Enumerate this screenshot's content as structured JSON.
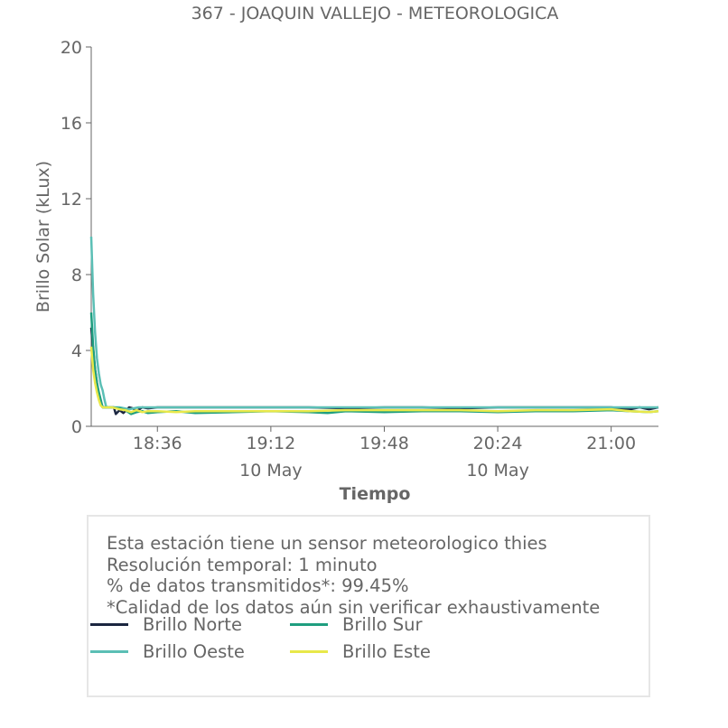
{
  "chart_data": {
    "type": "line",
    "title": "367 - JOAQUIN VALLEJO - METEOROLOGICA",
    "xlabel": "Tiempo",
    "ylabel": "Brillo Solar (kLux)",
    "ylim": [
      0,
      20
    ],
    "yticks": [
      0,
      4,
      8,
      12,
      16,
      20
    ],
    "x_range_minutes": [
      18.25,
      21.25
    ],
    "xticks": [
      {
        "t": 18.6,
        "label": "18:36",
        "date": ""
      },
      {
        "t": 19.2,
        "label": "19:12",
        "date": "10 May"
      },
      {
        "t": 19.8,
        "label": "19:48",
        "date": ""
      },
      {
        "t": 20.4,
        "label": "20:24",
        "date": "10 May"
      },
      {
        "t": 21.0,
        "label": "21:00",
        "date": ""
      }
    ],
    "grid": false,
    "legend_position": "bottom",
    "series": [
      {
        "name": "Brillo Norte",
        "color": "#1b2640",
        "points": [
          [
            18.25,
            5.2
          ],
          [
            18.27,
            3.0
          ],
          [
            18.29,
            1.6
          ],
          [
            18.31,
            1.0
          ],
          [
            18.33,
            1.0
          ],
          [
            18.35,
            1.0
          ],
          [
            18.37,
            1.0
          ],
          [
            18.38,
            0.65
          ],
          [
            18.4,
            0.85
          ],
          [
            18.42,
            0.7
          ],
          [
            18.45,
            1.0
          ],
          [
            18.47,
            0.95
          ],
          [
            18.49,
            0.8
          ],
          [
            18.52,
            1.0
          ],
          [
            18.55,
            0.95
          ],
          [
            18.6,
            1.0
          ],
          [
            18.7,
            1.0
          ],
          [
            18.8,
            1.0
          ],
          [
            19.0,
            1.0
          ],
          [
            19.2,
            1.0
          ],
          [
            19.4,
            1.0
          ],
          [
            19.6,
            0.95
          ],
          [
            19.8,
            1.0
          ],
          [
            20.0,
            1.0
          ],
          [
            20.2,
            0.95
          ],
          [
            20.4,
            1.0
          ],
          [
            20.6,
            1.0
          ],
          [
            20.8,
            1.0
          ],
          [
            21.0,
            1.0
          ],
          [
            21.1,
            0.9
          ],
          [
            21.15,
            1.0
          ],
          [
            21.2,
            0.9
          ],
          [
            21.25,
            1.0
          ]
        ]
      },
      {
        "name": "Brillo Oeste",
        "color": "#5bbfb5",
        "points": [
          [
            18.25,
            10.0
          ],
          [
            18.26,
            7.0
          ],
          [
            18.27,
            5.0
          ],
          [
            18.28,
            3.6
          ],
          [
            18.29,
            2.8
          ],
          [
            18.3,
            2.2
          ],
          [
            18.31,
            1.9
          ],
          [
            18.32,
            1.4
          ],
          [
            18.33,
            1.0
          ],
          [
            18.36,
            1.0
          ],
          [
            18.4,
            1.0
          ],
          [
            18.45,
            0.9
          ],
          [
            18.5,
            1.0
          ],
          [
            18.6,
            1.0
          ],
          [
            18.8,
            1.0
          ],
          [
            19.0,
            1.0
          ],
          [
            19.2,
            1.0
          ],
          [
            19.4,
            1.0
          ],
          [
            19.6,
            1.0
          ],
          [
            19.8,
            1.0
          ],
          [
            20.0,
            1.0
          ],
          [
            20.2,
            1.0
          ],
          [
            20.4,
            1.0
          ],
          [
            20.6,
            1.0
          ],
          [
            20.8,
            1.0
          ],
          [
            21.0,
            1.0
          ],
          [
            21.25,
            1.0
          ]
        ]
      },
      {
        "name": "Brillo Sur",
        "color": "#1f9e7f",
        "points": [
          [
            18.25,
            6.0
          ],
          [
            18.26,
            4.2
          ],
          [
            18.27,
            3.0
          ],
          [
            18.28,
            2.3
          ],
          [
            18.29,
            1.8
          ],
          [
            18.3,
            1.4
          ],
          [
            18.31,
            1.0
          ],
          [
            18.33,
            1.0
          ],
          [
            18.36,
            1.0
          ],
          [
            18.4,
            0.95
          ],
          [
            18.43,
            0.85
          ],
          [
            18.46,
            0.65
          ],
          [
            18.49,
            0.75
          ],
          [
            18.52,
            0.8
          ],
          [
            18.55,
            0.7
          ],
          [
            18.6,
            0.75
          ],
          [
            18.7,
            0.8
          ],
          [
            18.8,
            0.7
          ],
          [
            19.0,
            0.75
          ],
          [
            19.2,
            0.8
          ],
          [
            19.4,
            0.75
          ],
          [
            19.5,
            0.7
          ],
          [
            19.6,
            0.8
          ],
          [
            19.8,
            0.75
          ],
          [
            20.0,
            0.8
          ],
          [
            20.2,
            0.8
          ],
          [
            20.4,
            0.75
          ],
          [
            20.6,
            0.8
          ],
          [
            20.8,
            0.8
          ],
          [
            21.0,
            0.85
          ],
          [
            21.1,
            0.8
          ],
          [
            21.2,
            0.75
          ],
          [
            21.25,
            0.8
          ]
        ]
      },
      {
        "name": "Brillo Este",
        "color": "#e8e84a",
        "points": [
          [
            18.25,
            4.2
          ],
          [
            18.26,
            3.0
          ],
          [
            18.27,
            2.3
          ],
          [
            18.28,
            1.8
          ],
          [
            18.29,
            1.4
          ],
          [
            18.3,
            1.1
          ],
          [
            18.31,
            1.0
          ],
          [
            18.33,
            1.0
          ],
          [
            18.36,
            1.0
          ],
          [
            18.4,
            0.9
          ],
          [
            18.43,
            0.85
          ],
          [
            18.46,
            0.75
          ],
          [
            18.49,
            0.85
          ],
          [
            18.52,
            0.75
          ],
          [
            18.55,
            0.8
          ],
          [
            18.6,
            0.8
          ],
          [
            18.7,
            0.75
          ],
          [
            18.8,
            0.8
          ],
          [
            19.0,
            0.8
          ],
          [
            19.2,
            0.8
          ],
          [
            19.4,
            0.8
          ],
          [
            19.6,
            0.85
          ],
          [
            19.8,
            0.85
          ],
          [
            20.0,
            0.85
          ],
          [
            20.2,
            0.85
          ],
          [
            20.4,
            0.8
          ],
          [
            20.6,
            0.85
          ],
          [
            20.8,
            0.85
          ],
          [
            21.0,
            0.9
          ],
          [
            21.1,
            0.8
          ],
          [
            21.2,
            0.75
          ],
          [
            21.25,
            0.8
          ]
        ]
      }
    ]
  },
  "info": {
    "lines": [
      "Esta estación tiene un sensor meteorologico thies",
      "Resolución temporal: 1 minuto",
      "% de datos transmitidos*: 99.45%",
      "*Calidad de los datos aún sin verificar exhaustivamente"
    ]
  },
  "colors": {
    "axis": "#666666",
    "box_border": "#e6e6e6"
  }
}
